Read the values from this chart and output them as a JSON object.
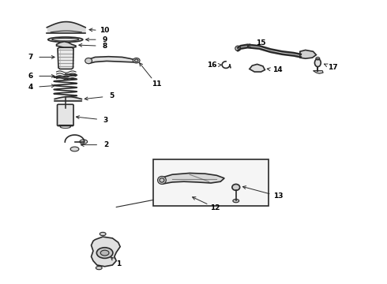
{
  "bg_color": "#ffffff",
  "line_color": "#2a2a2a",
  "label_color": "#000000",
  "figsize": [
    4.9,
    3.6
  ],
  "dpi": 100,
  "label_positions": {
    "1": [
      0.285,
      0.072,
      0.305,
      0.082
    ],
    "2": [
      0.255,
      0.415,
      0.275,
      0.415
    ],
    "3": [
      0.255,
      0.53,
      0.278,
      0.517
    ],
    "4": [
      0.105,
      0.62,
      0.148,
      0.62
    ],
    "5": [
      0.26,
      0.67,
      0.235,
      0.658
    ],
    "6": [
      0.105,
      0.72,
      0.148,
      0.72
    ],
    "7": [
      0.105,
      0.78,
      0.148,
      0.79
    ],
    "8": [
      0.23,
      0.84,
      0.21,
      0.848
    ],
    "9": [
      0.23,
      0.87,
      0.21,
      0.876
    ],
    "10": [
      0.23,
      0.9,
      0.21,
      0.904
    ],
    "11": [
      0.395,
      0.71,
      0.41,
      0.72
    ],
    "12": [
      0.555,
      0.27,
      0.545,
      0.285
    ],
    "13": [
      0.69,
      0.31,
      0.673,
      0.325
    ],
    "14": [
      0.665,
      0.77,
      0.66,
      0.758
    ],
    "15": [
      0.665,
      0.83,
      0.648,
      0.82
    ],
    "16": [
      0.565,
      0.77,
      0.582,
      0.77
    ],
    "17": [
      0.84,
      0.77,
      0.826,
      0.77
    ]
  }
}
